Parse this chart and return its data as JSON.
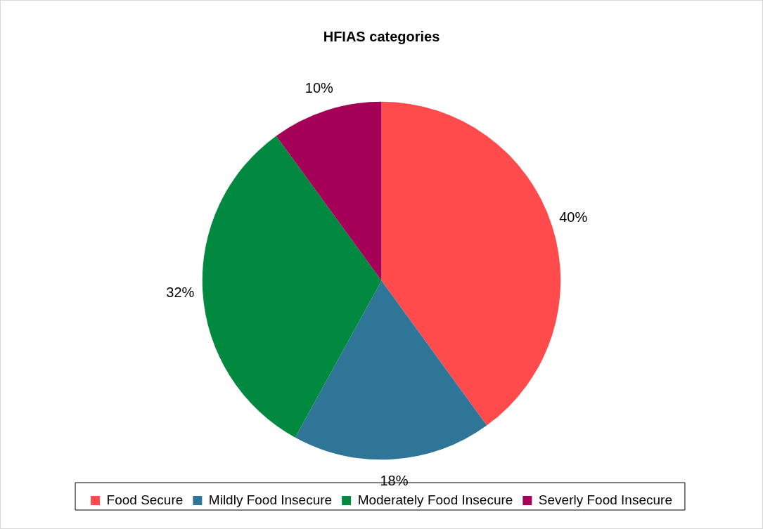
{
  "chart_data": {
    "type": "pie",
    "title": "HFIAS categories",
    "categories": [
      "Food Secure",
      "Mildly Food Insecure",
      "Moderately Food Insecure",
      "Severly Food Insecure"
    ],
    "values": [
      40,
      18,
      32,
      10
    ],
    "colors": [
      "#ff4b4b",
      "#2e7598",
      "#00893f",
      "#a50057"
    ],
    "value_labels": [
      "40%",
      "18%",
      "32%",
      "10%"
    ],
    "legend": "bottom"
  }
}
